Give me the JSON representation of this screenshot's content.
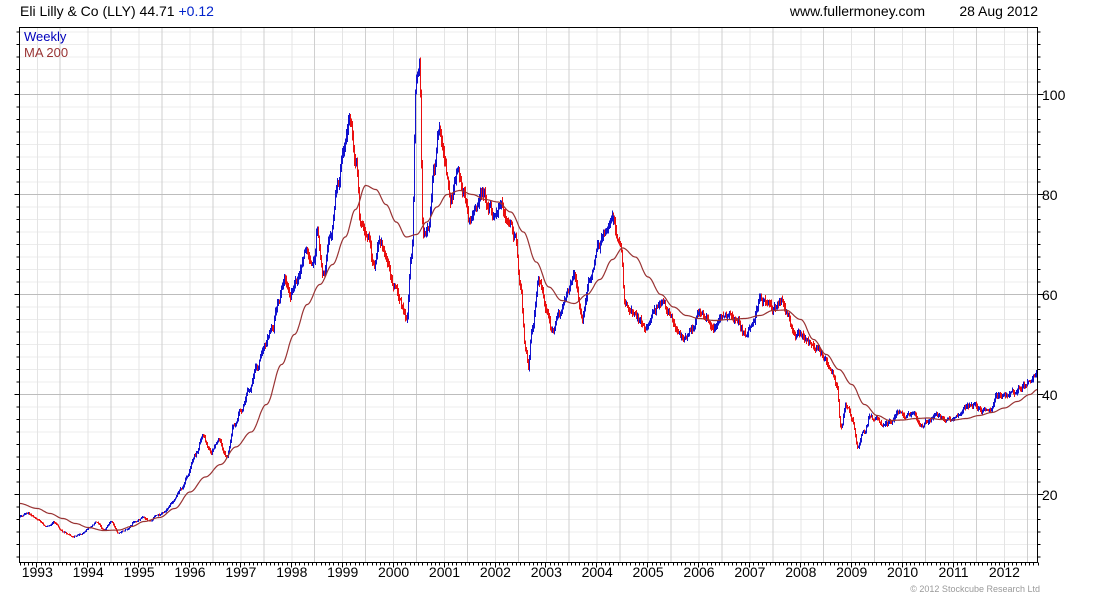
{
  "header": {
    "title": "Eli Lilly & Co (LLY) 44.71",
    "change": "+0.12",
    "website": "www.fullermoney.com",
    "date": "28 Aug 2012"
  },
  "legend": {
    "weekly_label": "Weekly",
    "ma_label": "MA 200"
  },
  "footer": {
    "copyright": "© 2012 Stockcube Research Ltd"
  },
  "colors": {
    "bar_up": "#1212cf",
    "bar_down": "#ea1010",
    "ma_line": "#993333",
    "legend_weekly": "#0000bb",
    "change_text": "#0022cc",
    "grid_minor_h": "#ececec",
    "grid_major_h": "#bdbdbd",
    "grid_vert_mid": "#cfcfcf",
    "grid_vert_year": "#e4e4e4",
    "axis": "#000000",
    "copyright_text": "#9a9a9a"
  },
  "chart_data": {
    "type": "bar",
    "subtype": "weekly high-low price bars with moving-average overlay",
    "title": "Eli Lilly & Co (LLY)",
    "last_price": 44.71,
    "change": "+0.12",
    "frequency": "Weekly",
    "overlay": "MA 200",
    "x_axis": {
      "labels": [
        "1993",
        "1994",
        "1995",
        "1996",
        "1997",
        "1998",
        "1999",
        "2000",
        "2001",
        "2002",
        "2003",
        "2004",
        "2005",
        "2006",
        "2007",
        "2008",
        "2009",
        "2010",
        "2011",
        "2012"
      ],
      "domain": [
        1992.65,
        2012.65
      ],
      "minor_tick": "monthly"
    },
    "y_axis": {
      "ticks": [
        20,
        40,
        60,
        80,
        100
      ],
      "minor_step": 2.5,
      "domain": [
        6.4,
        113.4
      ],
      "side": "right",
      "scale": "linear"
    },
    "series": [
      {
        "name": "Weekly",
        "style": "hl-bars",
        "up_color": "#1212cf",
        "down_color": "#ea1010",
        "anchors": [
          [
            1992.65,
            15.6
          ],
          [
            1992.8,
            16.3
          ],
          [
            1993.0,
            15.0
          ],
          [
            1993.15,
            13.6
          ],
          [
            1993.3,
            14.4
          ],
          [
            1993.5,
            12.5
          ],
          [
            1993.7,
            11.6
          ],
          [
            1993.85,
            12.1
          ],
          [
            1994.0,
            13.3
          ],
          [
            1994.15,
            14.4
          ],
          [
            1994.3,
            12.9
          ],
          [
            1994.45,
            14.5
          ],
          [
            1994.6,
            12.2
          ],
          [
            1994.75,
            13.0
          ],
          [
            1994.9,
            14.4
          ],
          [
            1995.05,
            15.3
          ],
          [
            1995.2,
            14.7
          ],
          [
            1995.35,
            15.9
          ],
          [
            1995.5,
            16.6
          ],
          [
            1995.65,
            18.5
          ],
          [
            1995.8,
            21.0
          ],
          [
            1995.95,
            24.0
          ],
          [
            1996.1,
            28.0
          ],
          [
            1996.25,
            31.5
          ],
          [
            1996.4,
            28.5
          ],
          [
            1996.55,
            31.0
          ],
          [
            1996.7,
            27.5
          ],
          [
            1996.85,
            33.5
          ],
          [
            1997.0,
            37.0
          ],
          [
            1997.15,
            41.0
          ],
          [
            1997.3,
            45.5
          ],
          [
            1997.45,
            50.0
          ],
          [
            1997.6,
            53.0
          ],
          [
            1997.75,
            59.0
          ],
          [
            1997.85,
            63.0
          ],
          [
            1997.95,
            60.0
          ],
          [
            1998.1,
            62.5
          ],
          [
            1998.25,
            69.0
          ],
          [
            1998.4,
            66.0
          ],
          [
            1998.5,
            72.5
          ],
          [
            1998.62,
            64.0
          ],
          [
            1998.75,
            72.0
          ],
          [
            1998.9,
            82.0
          ],
          [
            1999.0,
            89.0
          ],
          [
            1999.12,
            95.5
          ],
          [
            1999.25,
            86.0
          ],
          [
            1999.35,
            74.0
          ],
          [
            1999.5,
            72.0
          ],
          [
            1999.6,
            65.5
          ],
          [
            1999.72,
            70.5
          ],
          [
            1999.85,
            67.0
          ],
          [
            2000.0,
            62.0
          ],
          [
            2000.15,
            58.0
          ],
          [
            2000.25,
            55.0
          ],
          [
            2000.35,
            68.0
          ],
          [
            2000.44,
            103.0
          ],
          [
            2000.5,
            106.0
          ],
          [
            2000.57,
            71.0
          ],
          [
            2000.67,
            74.0
          ],
          [
            2000.78,
            85.0
          ],
          [
            2000.88,
            93.0
          ],
          [
            2001.0,
            86.0
          ],
          [
            2001.12,
            79.0
          ],
          [
            2001.25,
            84.5
          ],
          [
            2001.38,
            80.0
          ],
          [
            2001.5,
            74.5
          ],
          [
            2001.62,
            78.0
          ],
          [
            2001.75,
            80.5
          ],
          [
            2001.88,
            77.5
          ],
          [
            2002.0,
            75.5
          ],
          [
            2002.12,
            77.5
          ],
          [
            2002.25,
            75.0
          ],
          [
            2002.38,
            71.0
          ],
          [
            2002.48,
            61.0
          ],
          [
            2002.58,
            49.0
          ],
          [
            2002.64,
            44.5
          ],
          [
            2002.72,
            53.0
          ],
          [
            2002.85,
            63.0
          ],
          [
            2003.0,
            57.0
          ],
          [
            2003.1,
            52.5
          ],
          [
            2003.25,
            56.0
          ],
          [
            2003.4,
            60.0
          ],
          [
            2003.55,
            64.0
          ],
          [
            2003.7,
            55.5
          ],
          [
            2003.85,
            63.0
          ],
          [
            2004.0,
            69.0
          ],
          [
            2004.15,
            72.5
          ],
          [
            2004.3,
            75.0
          ],
          [
            2004.45,
            70.0
          ],
          [
            2004.55,
            58.0
          ],
          [
            2004.7,
            56.5
          ],
          [
            2004.85,
            54.5
          ],
          [
            2004.95,
            53.0
          ],
          [
            2005.1,
            56.5
          ],
          [
            2005.25,
            58.5
          ],
          [
            2005.4,
            56.5
          ],
          [
            2005.55,
            53.0
          ],
          [
            2005.7,
            51.0
          ],
          [
            2005.85,
            53.5
          ],
          [
            2006.0,
            56.5
          ],
          [
            2006.15,
            55.0
          ],
          [
            2006.3,
            53.0
          ],
          [
            2006.45,
            55.5
          ],
          [
            2006.6,
            56.0
          ],
          [
            2006.75,
            54.5
          ],
          [
            2006.9,
            52.0
          ],
          [
            2007.05,
            54.5
          ],
          [
            2007.2,
            59.5
          ],
          [
            2007.32,
            58.5
          ],
          [
            2007.45,
            57.0
          ],
          [
            2007.6,
            58.5
          ],
          [
            2007.72,
            56.0
          ],
          [
            2007.85,
            52.5
          ],
          [
            2008.0,
            52.0
          ],
          [
            2008.15,
            50.5
          ],
          [
            2008.3,
            49.5
          ],
          [
            2008.45,
            47.0
          ],
          [
            2008.6,
            44.5
          ],
          [
            2008.7,
            42.0
          ],
          [
            2008.78,
            33.5
          ],
          [
            2008.88,
            38.0
          ],
          [
            2009.0,
            35.5
          ],
          [
            2009.1,
            29.5
          ],
          [
            2009.22,
            32.5
          ],
          [
            2009.35,
            35.5
          ],
          [
            2009.5,
            35.0
          ],
          [
            2009.62,
            33.5
          ],
          [
            2009.75,
            34.5
          ],
          [
            2009.9,
            36.5
          ],
          [
            2010.05,
            35.5
          ],
          [
            2010.2,
            36.5
          ],
          [
            2010.35,
            33.8
          ],
          [
            2010.5,
            34.8
          ],
          [
            2010.65,
            36.3
          ],
          [
            2010.8,
            35.2
          ],
          [
            2010.95,
            34.6
          ],
          [
            2011.1,
            35.5
          ],
          [
            2011.25,
            37.5
          ],
          [
            2011.4,
            38.2
          ],
          [
            2011.55,
            36.6
          ],
          [
            2011.7,
            37.2
          ],
          [
            2011.85,
            39.8
          ],
          [
            2012.0,
            39.6
          ],
          [
            2012.15,
            40.3
          ],
          [
            2012.3,
            41.3
          ],
          [
            2012.45,
            42.4
          ],
          [
            2012.58,
            43.8
          ],
          [
            2012.65,
            44.71
          ]
        ]
      },
      {
        "name": "MA 200",
        "style": "line",
        "color": "#993333",
        "anchors": [
          [
            1992.65,
            18.2
          ],
          [
            1993.0,
            17.2
          ],
          [
            1993.25,
            16.2
          ],
          [
            1993.5,
            15.2
          ],
          [
            1993.75,
            14.2
          ],
          [
            1994.0,
            13.4
          ],
          [
            1994.3,
            12.8
          ],
          [
            1994.6,
            12.9
          ],
          [
            1994.85,
            13.6
          ],
          [
            1995.1,
            14.6
          ],
          [
            1995.4,
            15.4
          ],
          [
            1995.7,
            17.2
          ],
          [
            1996.0,
            20.5
          ],
          [
            1996.3,
            23.5
          ],
          [
            1996.6,
            26.0
          ],
          [
            1996.9,
            29.5
          ],
          [
            1997.2,
            32.5
          ],
          [
            1997.5,
            38.0
          ],
          [
            1997.8,
            46.0
          ],
          [
            1998.05,
            52.0
          ],
          [
            1998.3,
            58.0
          ],
          [
            1998.55,
            62.0
          ],
          [
            1998.8,
            66.0
          ],
          [
            1999.05,
            71.5
          ],
          [
            1999.25,
            77.0
          ],
          [
            1999.45,
            81.8
          ],
          [
            1999.65,
            81.0
          ],
          [
            1999.85,
            78.0
          ],
          [
            2000.05,
            74.5
          ],
          [
            2000.25,
            71.5
          ],
          [
            2000.45,
            72.0
          ],
          [
            2000.65,
            74.5
          ],
          [
            2000.85,
            77.5
          ],
          [
            2001.05,
            80.0
          ],
          [
            2001.3,
            80.8
          ],
          [
            2001.55,
            80.0
          ],
          [
            2001.8,
            79.0
          ],
          [
            2002.05,
            78.5
          ],
          [
            2002.3,
            76.5
          ],
          [
            2002.55,
            72.5
          ],
          [
            2002.8,
            66.5
          ],
          [
            2003.05,
            61.5
          ],
          [
            2003.3,
            58.8
          ],
          [
            2003.55,
            58.2
          ],
          [
            2003.8,
            60.0
          ],
          [
            2004.05,
            63.0
          ],
          [
            2004.3,
            67.0
          ],
          [
            2004.5,
            69.3
          ],
          [
            2004.75,
            67.5
          ],
          [
            2005.0,
            63.5
          ],
          [
            2005.25,
            60.0
          ],
          [
            2005.5,
            57.5
          ],
          [
            2005.75,
            55.8
          ],
          [
            2006.0,
            55.2
          ],
          [
            2006.3,
            54.8
          ],
          [
            2006.6,
            55.0
          ],
          [
            2006.9,
            55.2
          ],
          [
            2007.2,
            55.8
          ],
          [
            2007.45,
            56.8
          ],
          [
            2007.7,
            56.9
          ],
          [
            2008.0,
            55.0
          ],
          [
            2008.25,
            51.0
          ],
          [
            2008.5,
            48.0
          ],
          [
            2008.75,
            45.0
          ],
          [
            2009.0,
            42.0
          ],
          [
            2009.25,
            38.0
          ],
          [
            2009.5,
            35.8
          ],
          [
            2009.75,
            34.8
          ],
          [
            2010.0,
            34.9
          ],
          [
            2010.25,
            35.2
          ],
          [
            2010.5,
            35.3
          ],
          [
            2010.75,
            35.0
          ],
          [
            2011.0,
            34.9
          ],
          [
            2011.25,
            35.2
          ],
          [
            2011.5,
            35.8
          ],
          [
            2011.75,
            36.4
          ],
          [
            2012.0,
            37.3
          ],
          [
            2012.25,
            38.6
          ],
          [
            2012.5,
            40.0
          ],
          [
            2012.65,
            41.0
          ]
        ]
      }
    ]
  }
}
